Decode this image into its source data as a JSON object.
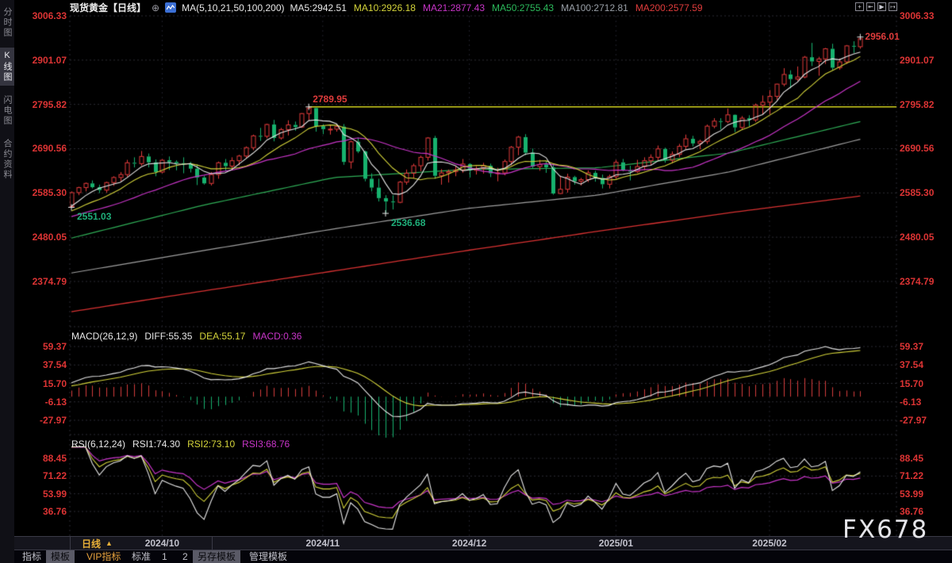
{
  "header": {
    "title": "现货黄金【日线】",
    "circle_plus": "⊕",
    "ma_group": "MA(5,10,21,50,100,200)",
    "ma_values": [
      {
        "text": "MA5:2942.51",
        "color": "#e8e8e8"
      },
      {
        "text": "MA10:2926.18",
        "color": "#d4d43a"
      },
      {
        "text": "MA21:2877.43",
        "color": "#c935c9"
      },
      {
        "text": "MA50:2755.43",
        "color": "#2cbb5c"
      },
      {
        "text": "MA100:2712.81",
        "color": "#9aa0a8"
      },
      {
        "text": "MA200:2577.59",
        "color": "#e03c3c"
      }
    ],
    "toolbar_icons": [
      {
        "name": "pan-icon",
        "glyph": "+"
      },
      {
        "name": "fit-axis-icon",
        "glyph": "⇤"
      },
      {
        "name": "play-axis-icon",
        "glyph": "▶"
      },
      {
        "name": "detach-icon",
        "glyph": "↦"
      }
    ]
  },
  "sidebar": {
    "items": [
      {
        "label": "分时图",
        "selected": false
      },
      {
        "label": "K线图",
        "selected": true
      },
      {
        "label": "闪电图",
        "selected": false
      },
      {
        "label": "合约资料",
        "selected": false
      }
    ]
  },
  "period_bar": {
    "period": "日线",
    "arrow": "▲"
  },
  "tabs": [
    {
      "label": "指标",
      "state": "normal"
    },
    {
      "label": "模板",
      "state": "selected"
    },
    {
      "label": "VIP指标",
      "state": "vip"
    },
    {
      "label": "标准",
      "state": "normal"
    },
    {
      "label": "1",
      "state": "normal"
    },
    {
      "label": "2",
      "state": "normal"
    },
    {
      "label": "另存模板",
      "state": "selected"
    },
    {
      "label": "管理模板",
      "state": "normal"
    }
  ],
  "watermark": "FX678",
  "chart_data": {
    "type": "candlestick",
    "symbol": "现货黄金",
    "interval": "日线",
    "price_axis": {
      "labels": [
        "3006.33",
        "2901.07",
        "2795.82",
        "2690.56",
        "2585.30",
        "2480.05",
        "2374.79"
      ]
    },
    "macd_axis": {
      "labels": [
        "59.37",
        "37.54",
        "15.70",
        "-6.13",
        "-27.97"
      ]
    },
    "rsi_axis": {
      "labels": [
        "88.45",
        "71.22",
        "53.99",
        "36.76"
      ]
    },
    "months": [
      {
        "index": 13,
        "label": "2024/10"
      },
      {
        "index": 36,
        "label": "2024/11"
      },
      {
        "index": 57,
        "label": "2024/12"
      },
      {
        "index": 78,
        "label": "2025/01"
      },
      {
        "index": 100,
        "label": "2025/02"
      }
    ],
    "indicators": {
      "macd": [
        {
          "text": "MACD(26,12,9)",
          "color": "#e8e8e8"
        },
        {
          "text": "DIFF:55.35",
          "color": "#e8e8e8"
        },
        {
          "text": "DEA:55.17",
          "color": "#d4d43a"
        },
        {
          "text": "MACD:0.36",
          "color": "#c935c9"
        }
      ],
      "rsi": [
        {
          "text": "RSI(6,12,24)",
          "color": "#e8e8e8"
        },
        {
          "text": "RSI1:74.30",
          "color": "#e8e8e8"
        },
        {
          "text": "RSI2:73.10",
          "color": "#d4d43a"
        },
        {
          "text": "RSI3:68.76",
          "color": "#c935c9"
        }
      ]
    },
    "annotations": [
      {
        "type": "low",
        "index": 0,
        "price": 2551.03,
        "label": "2551.03",
        "placement": "below"
      },
      {
        "type": "high",
        "index": 34,
        "price": 2789.95,
        "label": "2789.95",
        "placement": "above",
        "ray": true
      },
      {
        "type": "low",
        "index": 45,
        "price": 2536.68,
        "label": "2536.68",
        "placement": "below"
      },
      {
        "type": "high",
        "index": 113,
        "price": 2956.01,
        "label": "2956.01",
        "placement": "right"
      }
    ],
    "overlays": {
      "ma50": [
        2478,
        2556,
        2622,
        2641,
        2645,
        2680,
        2755
      ],
      "ma100": [
        2395,
        2448,
        2500,
        2548,
        2580,
        2635,
        2713
      ],
      "ma200": [
        2303,
        2352,
        2400,
        2448,
        2494,
        2538,
        2578
      ]
    },
    "candles": [
      [
        2553,
        2589,
        2551.03,
        2586
      ],
      [
        2586,
        2600,
        2580,
        2598
      ],
      [
        2598,
        2610,
        2589,
        2608
      ],
      [
        2608,
        2615,
        2596,
        2599
      ],
      [
        2599,
        2605,
        2585,
        2592
      ],
      [
        2592,
        2612,
        2586,
        2610
      ],
      [
        2610,
        2625,
        2602,
        2622
      ],
      [
        2622,
        2635,
        2613,
        2629
      ],
      [
        2629,
        2664,
        2623,
        2657
      ],
      [
        2657,
        2670,
        2646,
        2655
      ],
      [
        2655,
        2685,
        2650,
        2672
      ],
      [
        2672,
        2679,
        2646,
        2658
      ],
      [
        2658,
        2665,
        2625,
        2635
      ],
      [
        2635,
        2666,
        2632,
        2663
      ],
      [
        2663,
        2672,
        2640,
        2659
      ],
      [
        2659,
        2663,
        2639,
        2656
      ],
      [
        2656,
        2670,
        2632,
        2654
      ],
      [
        2654,
        2659,
        2634,
        2643
      ],
      [
        2643,
        2653,
        2604,
        2622
      ],
      [
        2622,
        2626,
        2605,
        2608
      ],
      [
        2608,
        2635,
        2603,
        2629
      ],
      [
        2629,
        2660,
        2619,
        2657
      ],
      [
        2657,
        2666,
        2638,
        2649
      ],
      [
        2649,
        2670,
        2639,
        2662
      ],
      [
        2662,
        2676,
        2651,
        2673
      ],
      [
        2673,
        2696,
        2668,
        2693
      ],
      [
        2693,
        2724,
        2687,
        2721
      ],
      [
        2721,
        2740,
        2709,
        2720
      ],
      [
        2720,
        2750,
        2715,
        2748
      ],
      [
        2748,
        2759,
        2708,
        2716
      ],
      [
        2716,
        2740,
        2712,
        2736
      ],
      [
        2736,
        2758,
        2722,
        2747
      ],
      [
        2747,
        2755,
        2733,
        2742
      ],
      [
        2742,
        2775,
        2740,
        2774
      ],
      [
        2774,
        2789.95,
        2758,
        2787
      ],
      [
        2787,
        2789,
        2731,
        2744
      ],
      [
        2744,
        2749,
        2725,
        2737
      ],
      [
        2737,
        2748,
        2724,
        2737
      ],
      [
        2737,
        2749,
        2731,
        2743
      ],
      [
        2743,
        2749,
        2652,
        2659
      ],
      [
        2659,
        2710,
        2643,
        2707
      ],
      [
        2707,
        2717,
        2680,
        2684
      ],
      [
        2684,
        2686,
        2613,
        2619
      ],
      [
        2619,
        2632,
        2589,
        2598
      ],
      [
        2598,
        2619,
        2565,
        2573
      ],
      [
        2573,
        2580,
        2536.68,
        2565
      ],
      [
        2565,
        2580,
        2546,
        2563
      ],
      [
        2563,
        2614,
        2561,
        2611
      ],
      [
        2611,
        2641,
        2605,
        2632
      ],
      [
        2632,
        2655,
        2620,
        2650
      ],
      [
        2650,
        2674,
        2637,
        2670
      ],
      [
        2670,
        2718,
        2662,
        2716
      ],
      [
        2716,
        2721,
        2619,
        2626
      ],
      [
        2626,
        2642,
        2605,
        2633
      ],
      [
        2633,
        2641,
        2610,
        2636
      ],
      [
        2636,
        2650,
        2625,
        2640
      ],
      [
        2640,
        2666,
        2633,
        2654
      ],
      [
        2654,
        2656,
        2622,
        2639
      ],
      [
        2639,
        2649,
        2629,
        2643
      ],
      [
        2643,
        2657,
        2631,
        2650
      ],
      [
        2650,
        2655,
        2623,
        2632
      ],
      [
        2632,
        2645,
        2613,
        2633
      ],
      [
        2633,
        2665,
        2627,
        2660
      ],
      [
        2660,
        2697,
        2651,
        2694
      ],
      [
        2694,
        2721,
        2675,
        2718
      ],
      [
        2718,
        2725,
        2675,
        2681
      ],
      [
        2681,
        2691,
        2643,
        2648
      ],
      [
        2648,
        2664,
        2638,
        2653
      ],
      [
        2653,
        2661,
        2633,
        2646
      ],
      [
        2646,
        2652,
        2581,
        2584
      ],
      [
        2584,
        2626,
        2583,
        2594
      ],
      [
        2594,
        2631,
        2586,
        2623
      ],
      [
        2623,
        2626,
        2605,
        2613
      ],
      [
        2613,
        2621,
        2603,
        2617
      ],
      [
        2617,
        2639,
        2611,
        2633
      ],
      [
        2633,
        2638,
        2612,
        2621
      ],
      [
        2621,
        2629,
        2596,
        2606
      ],
      [
        2606,
        2629,
        2596,
        2624
      ],
      [
        2624,
        2664,
        2619,
        2658
      ],
      [
        2658,
        2666,
        2637,
        2639
      ],
      [
        2639,
        2650,
        2615,
        2636
      ],
      [
        2636,
        2664,
        2633,
        2648
      ],
      [
        2648,
        2670,
        2639,
        2662
      ],
      [
        2662,
        2677,
        2652,
        2670
      ],
      [
        2670,
        2698,
        2663,
        2690
      ],
      [
        2690,
        2693,
        2657,
        2663
      ],
      [
        2663,
        2684,
        2656,
        2677
      ],
      [
        2677,
        2702,
        2670,
        2696
      ],
      [
        2696,
        2724,
        2690,
        2714
      ],
      [
        2714,
        2721,
        2696,
        2703
      ],
      [
        2703,
        2712,
        2689,
        2708
      ],
      [
        2708,
        2748,
        2702,
        2744
      ],
      [
        2744,
        2763,
        2739,
        2756
      ],
      [
        2756,
        2763,
        2736,
        2755
      ],
      [
        2755,
        2786,
        2751,
        2771
      ],
      [
        2771,
        2772,
        2730,
        2741
      ],
      [
        2741,
        2768,
        2735,
        2763
      ],
      [
        2763,
        2770,
        2744,
        2759
      ],
      [
        2759,
        2798,
        2754,
        2794
      ],
      [
        2794,
        2817,
        2772,
        2801
      ],
      [
        2801,
        2830,
        2772,
        2815
      ],
      [
        2815,
        2845,
        2807,
        2844
      ],
      [
        2844,
        2882,
        2839,
        2867
      ],
      [
        2867,
        2877,
        2834,
        2856
      ],
      [
        2856,
        2886,
        2852,
        2861
      ],
      [
        2861,
        2911,
        2858,
        2908
      ],
      [
        2908,
        2942,
        2887,
        2898
      ],
      [
        2898,
        2909,
        2864,
        2904
      ],
      [
        2904,
        2930,
        2892,
        2928
      ],
      [
        2928,
        2940,
        2877,
        2883
      ],
      [
        2883,
        2905,
        2878,
        2897
      ],
      [
        2897,
        2937,
        2892,
        2935
      ],
      [
        2935,
        2946,
        2918,
        2933
      ],
      [
        2933,
        2956.01,
        2928,
        2952
      ]
    ],
    "colors": {
      "up": "#e23b3b",
      "down": "#17b26e",
      "ma5": "#e8e8e8",
      "ma10": "#d4d43a",
      "ma21": "#c935c9",
      "ma50": "#2fae57",
      "ma100": "#a0a0a0",
      "ma200": "#d83232",
      "ray": "#d6d61e",
      "grid": "#2c2c34",
      "vgrid": "#20202a",
      "diff": "#e8e8e8",
      "dea": "#d4d43a",
      "bar_pos": "#d63c3c",
      "bar_neg": "#17b26e",
      "rsi1": "#e8e8e8",
      "rsi2": "#d4d43a",
      "rsi3": "#c935c9",
      "anno_high": "#e03c3c",
      "anno_low": "#1faf7a",
      "cross": "#e8e8e8"
    }
  }
}
